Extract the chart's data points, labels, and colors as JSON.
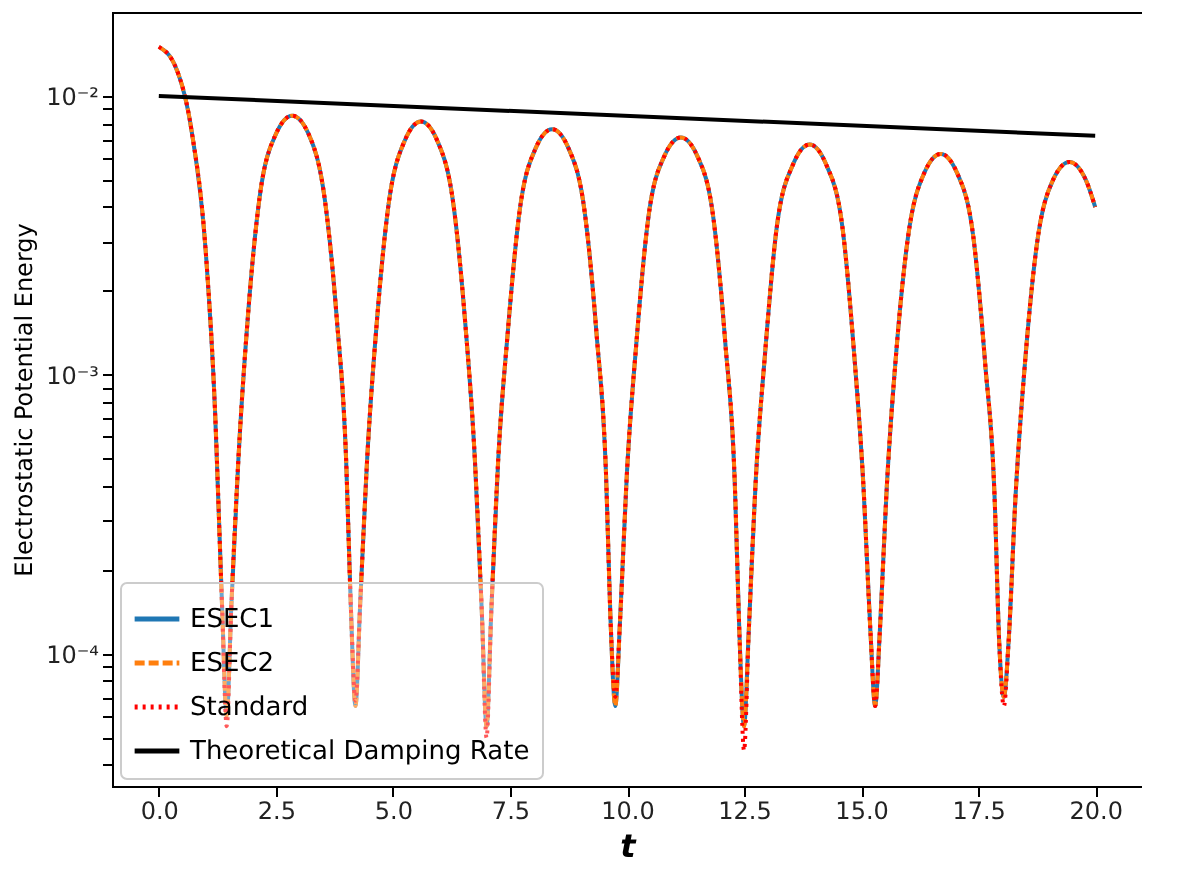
{
  "chart_data": {
    "type": "line",
    "xlabel": "t",
    "ylabel": "Electrostatic Potential Energy",
    "log": "y",
    "grid": false,
    "legend": "bottom left",
    "xlim": [
      -1,
      21
    ],
    "ylim": [
      3.36e-05,
      0.02
    ],
    "xticks": [
      {
        "value": 0,
        "label": "0.0"
      },
      2.5,
      {
        "value": 5,
        "label": "5.0"
      },
      7.5,
      {
        "value": 10,
        "label": "10.0"
      },
      12.5,
      {
        "value": 15,
        "label": "15.0"
      },
      17.5,
      {
        "value": 20,
        "label": "20.0"
      }
    ],
    "yticks": [
      {
        "value": 4e-05,
        "label": null
      },
      {
        "value": 5e-05,
        "label": null
      },
      {
        "value": 6e-05,
        "label": null
      },
      {
        "value": 7e-05,
        "label": null
      },
      {
        "value": 8e-05,
        "label": null
      },
      {
        "value": 9e-05,
        "label": null
      },
      {
        "value": 0.0001,
        "label": "10⁻⁴"
      },
      {
        "value": 0.0002,
        "label": null
      },
      {
        "value": 0.0003,
        "label": null
      },
      {
        "value": 0.0004,
        "label": null
      },
      {
        "value": 0.0005,
        "label": null
      },
      {
        "value": 0.0006,
        "label": null
      },
      {
        "value": 0.0007,
        "label": null
      },
      {
        "value": 0.0008,
        "label": null
      },
      {
        "value": 0.0009,
        "label": null
      },
      {
        "value": 0.001,
        "label": "10⁻³"
      },
      {
        "value": 0.002,
        "label": null
      },
      {
        "value": 0.003,
        "label": null
      },
      {
        "value": 0.004,
        "label": null
      },
      {
        "value": 0.005,
        "label": null
      },
      {
        "value": 0.006,
        "label": null
      },
      {
        "value": 0.007,
        "label": null
      },
      {
        "value": 0.008,
        "label": null
      },
      {
        "value": 0.009,
        "label": null
      },
      {
        "value": 0.01,
        "label": "10⁻²"
      }
    ],
    "x": [
      0,
      0.35,
      0.7,
      1.0,
      1.2,
      1.35,
      1.45,
      1.55,
      1.7,
      1.9,
      2.15,
      2.5,
      2.85,
      3.2,
      3.55,
      3.8,
      4.0,
      4.1,
      4.2,
      4.3,
      4.45,
      4.65,
      4.9,
      5.25,
      5.6,
      5.95,
      6.3,
      6.55,
      6.75,
      6.9,
      7.0,
      7.1,
      7.25,
      7.45,
      7.7,
      8.05,
      8.4,
      8.75,
      9.1,
      9.35,
      9.55,
      9.65,
      9.75,
      9.85,
      10.0,
      10.2,
      10.45,
      10.8,
      11.15,
      11.5,
      11.85,
      12.1,
      12.3,
      12.4,
      12.5,
      12.6,
      12.75,
      12.95,
      13.2,
      13.55,
      13.9,
      14.25,
      14.6,
      14.85,
      15.05,
      15.2,
      15.3,
      15.4,
      15.55,
      15.75,
      16.0,
      16.35,
      16.7,
      17.05,
      17.4,
      17.65,
      17.85,
      17.95,
      18.05,
      18.15,
      18.3,
      18.5,
      18.75,
      19.1,
      19.45,
      19.8,
      20.0
    ],
    "series": [
      {
        "name": "ESEC1",
        "color": "#1f77b4",
        "line_style": "solid",
        "values": [
          0.015,
          0.0128,
          0.0075,
          0.0028,
          0.00075,
          0.00015,
          6e-05,
          0.00015,
          0.0005,
          0.0016,
          0.0043,
          0.0073,
          0.0085,
          0.0073,
          0.0042,
          0.0016,
          0.0005,
          0.00015,
          6.5e-05,
          0.00015,
          0.0005,
          0.0015,
          0.004,
          0.0069,
          0.0081,
          0.0069,
          0.004,
          0.0015,
          0.0005,
          0.00014,
          5.5e-05,
          0.00014,
          0.0005,
          0.0014,
          0.0038,
          0.0065,
          0.0076,
          0.0065,
          0.0038,
          0.0014,
          0.00045,
          0.00013,
          6.5e-05,
          0.00013,
          0.00045,
          0.0013,
          0.0036,
          0.0061,
          0.0071,
          0.0061,
          0.0036,
          0.0013,
          0.00042,
          0.00012,
          5.5e-05,
          0.00012,
          0.00042,
          0.0012,
          0.0034,
          0.0057,
          0.0067,
          0.0057,
          0.0034,
          0.0012,
          0.0004,
          0.00012,
          6.5e-05,
          0.00012,
          0.0004,
          0.0012,
          0.0031,
          0.0053,
          0.0062,
          0.0053,
          0.0031,
          0.0011,
          0.00037,
          0.00011,
          7e-05,
          0.00011,
          0.00037,
          0.0011,
          0.0029,
          0.005,
          0.0058,
          0.005,
          0.004
        ]
      },
      {
        "name": "ESEC2",
        "color": "#ff7f0e",
        "line_style": "dashed",
        "values": [
          0.015,
          0.0128,
          0.0075,
          0.0028,
          0.00075,
          0.00015,
          6e-05,
          0.00015,
          0.0005,
          0.0016,
          0.0043,
          0.0073,
          0.0085,
          0.0073,
          0.0042,
          0.0016,
          0.0005,
          0.00015,
          6.5e-05,
          0.00015,
          0.0005,
          0.0015,
          0.004,
          0.0069,
          0.0081,
          0.0069,
          0.004,
          0.0015,
          0.0005,
          0.00014,
          5.5e-05,
          0.00014,
          0.0005,
          0.0014,
          0.0038,
          0.0065,
          0.0076,
          0.0065,
          0.0038,
          0.0014,
          0.00045,
          0.00013,
          6.5e-05,
          0.00013,
          0.00045,
          0.0013,
          0.0036,
          0.0061,
          0.0071,
          0.0061,
          0.0036,
          0.0013,
          0.00042,
          0.00012,
          5.5e-05,
          0.00012,
          0.00042,
          0.0012,
          0.0034,
          0.0057,
          0.0067,
          0.0057,
          0.0034,
          0.0012,
          0.0004,
          0.00012,
          6.5e-05,
          0.00012,
          0.0004,
          0.0012,
          0.0031,
          0.0053,
          0.0062,
          0.0053,
          0.0031,
          0.0011,
          0.00037,
          0.00011,
          7e-05,
          0.00011,
          0.00037,
          0.0011,
          0.0029,
          0.005,
          0.0058,
          0.005,
          0.004
        ]
      },
      {
        "name": "Standard",
        "color": "#ff0000",
        "line_style": "dotted",
        "values": [
          0.015,
          0.0128,
          0.0075,
          0.0028,
          0.00075,
          0.00015,
          5.5e-05,
          0.00015,
          0.0005,
          0.0016,
          0.0043,
          0.0073,
          0.0085,
          0.0073,
          0.0042,
          0.0016,
          0.0005,
          0.00015,
          6.8e-05,
          0.00015,
          0.0005,
          0.0015,
          0.004,
          0.0069,
          0.0081,
          0.0069,
          0.004,
          0.0015,
          0.0005,
          0.00014,
          5e-05,
          0.00014,
          0.0005,
          0.0014,
          0.0038,
          0.0065,
          0.0076,
          0.0065,
          0.0038,
          0.0014,
          0.00045,
          0.00013,
          7e-05,
          0.00013,
          0.00045,
          0.0013,
          0.0036,
          0.0061,
          0.0071,
          0.0061,
          0.0036,
          0.0013,
          0.00042,
          0.00012,
          4.5e-05,
          0.00012,
          0.00042,
          0.0012,
          0.0034,
          0.0057,
          0.0067,
          0.0057,
          0.0034,
          0.0012,
          0.0004,
          0.00012,
          6.5e-05,
          0.00012,
          0.0004,
          0.0012,
          0.0031,
          0.0053,
          0.0062,
          0.0053,
          0.0031,
          0.0011,
          0.00037,
          0.00011,
          6.5e-05,
          0.00011,
          0.00037,
          0.0011,
          0.0029,
          0.005,
          0.0058,
          0.005,
          0.004
        ]
      },
      {
        "name": "Theoretical Damping Rate",
        "color": "#000000",
        "line_style": "solid",
        "x": [
          0,
          20
        ],
        "values": [
          0.01,
          0.0072
        ]
      }
    ]
  }
}
